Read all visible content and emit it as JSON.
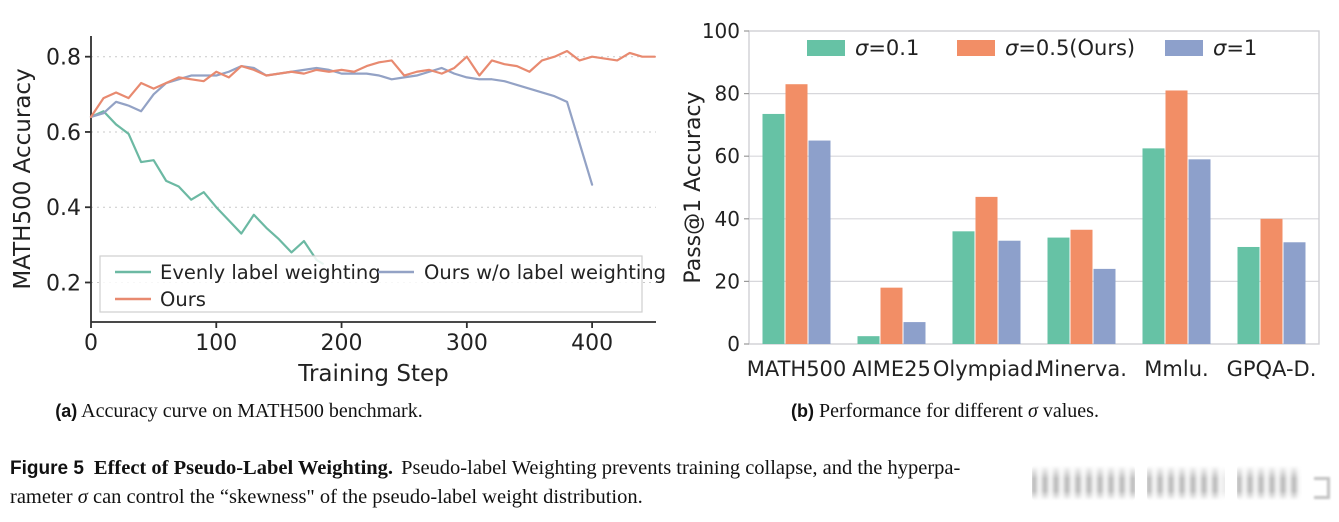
{
  "figure": {
    "label": "Figure 5",
    "title": "Effect of Pseudo-Label Weighting.",
    "line1_rest": "Pseudo-label Weighting prevents training collapse, and the hyperpa-",
    "line2_pre": "rameter ",
    "sigma": "σ",
    "line2_post": " can control the “skewness\" of the pseudo-label weight distribution.",
    "watermark_note": "illegible blurred watermark"
  },
  "subcaptions": {
    "a_label": "(a)",
    "a_text": " Accuracy curve on MATH500 benchmark.",
    "b_label": "(b)",
    "b_pre": " Performance for different ",
    "b_sigma": "σ",
    "b_post": " values."
  },
  "chart_data": [
    {
      "type": "line",
      "title": "",
      "xlabel": "Training Step",
      "ylabel": "MATH500 Accuracy",
      "xlim": [
        0,
        451
      ],
      "ylim": [
        0.095,
        0.855
      ],
      "xticks": [
        0,
        100,
        200,
        300,
        400
      ],
      "yticks": [
        0.2,
        0.4,
        0.6,
        0.8
      ],
      "grid": "horizontal-dashed",
      "legend_position": "lower-left-box",
      "series": [
        {
          "name": "Evenly label weighting",
          "color": "#6cb9a3",
          "x": [
            0,
            10,
            20,
            30,
            40,
            50,
            60,
            70,
            80,
            90,
            100,
            110,
            120,
            130,
            140,
            150,
            160,
            170,
            180,
            185
          ],
          "y": [
            0.64,
            0.655,
            0.62,
            0.595,
            0.52,
            0.525,
            0.47,
            0.455,
            0.42,
            0.44,
            0.4,
            0.365,
            0.33,
            0.38,
            0.345,
            0.315,
            0.28,
            0.31,
            0.26,
            0.25
          ]
        },
        {
          "name": "Ours",
          "color": "#e88a70",
          "x": [
            0,
            10,
            20,
            30,
            40,
            50,
            60,
            70,
            80,
            90,
            100,
            110,
            120,
            130,
            140,
            150,
            160,
            170,
            180,
            190,
            200,
            210,
            220,
            230,
            240,
            250,
            260,
            270,
            280,
            290,
            300,
            310,
            320,
            330,
            340,
            350,
            360,
            370,
            380,
            390,
            400,
            410,
            420,
            430,
            440,
            450
          ],
          "y": [
            0.64,
            0.69,
            0.705,
            0.69,
            0.73,
            0.715,
            0.73,
            0.745,
            0.74,
            0.735,
            0.76,
            0.745,
            0.775,
            0.765,
            0.75,
            0.755,
            0.76,
            0.755,
            0.765,
            0.76,
            0.765,
            0.76,
            0.775,
            0.785,
            0.79,
            0.75,
            0.76,
            0.765,
            0.755,
            0.77,
            0.8,
            0.75,
            0.79,
            0.78,
            0.775,
            0.76,
            0.79,
            0.8,
            0.815,
            0.79,
            0.8,
            0.795,
            0.79,
            0.81,
            0.8,
            0.8
          ]
        },
        {
          "name": "Ours w/o label weighting",
          "color": "#93a2c5",
          "x": [
            0,
            10,
            20,
            30,
            40,
            50,
            60,
            70,
            80,
            90,
            100,
            110,
            120,
            130,
            140,
            150,
            160,
            170,
            180,
            190,
            200,
            210,
            220,
            230,
            240,
            250,
            260,
            270,
            280,
            290,
            300,
            310,
            320,
            330,
            340,
            350,
            360,
            370,
            380,
            390,
            400
          ],
          "y": [
            0.64,
            0.65,
            0.68,
            0.67,
            0.655,
            0.7,
            0.73,
            0.74,
            0.75,
            0.75,
            0.75,
            0.76,
            0.775,
            0.77,
            0.75,
            0.755,
            0.76,
            0.765,
            0.77,
            0.765,
            0.755,
            0.755,
            0.755,
            0.75,
            0.74,
            0.745,
            0.75,
            0.76,
            0.77,
            0.755,
            0.745,
            0.74,
            0.74,
            0.735,
            0.725,
            0.715,
            0.705,
            0.695,
            0.68,
            0.57,
            0.46
          ]
        }
      ]
    },
    {
      "type": "bar",
      "title": "",
      "xlabel": "",
      "ylabel": "Pass@1 Accuracy",
      "ylim": [
        0,
        100
      ],
      "yticks": [
        0,
        20,
        40,
        60,
        80,
        100
      ],
      "grid": "horizontal-solid",
      "legend_position": "upper-center",
      "categories": [
        "MATH500",
        "AIME25",
        "Olympiad.",
        "Minerva.",
        "Mmlu.",
        "GPQA-D."
      ],
      "series": [
        {
          "name": "σ=0.1",
          "color": "#66c2a5",
          "values": [
            73.5,
            2.5,
            36,
            34,
            62.5,
            31
          ]
        },
        {
          "name": "σ=0.5(Ours)",
          "color": "#f28e66",
          "values": [
            83,
            18,
            47,
            36.5,
            81,
            40
          ]
        },
        {
          "name": "σ=1",
          "color": "#8da0cb",
          "values": [
            65,
            7,
            33,
            24,
            59,
            32.5
          ]
        }
      ]
    }
  ]
}
